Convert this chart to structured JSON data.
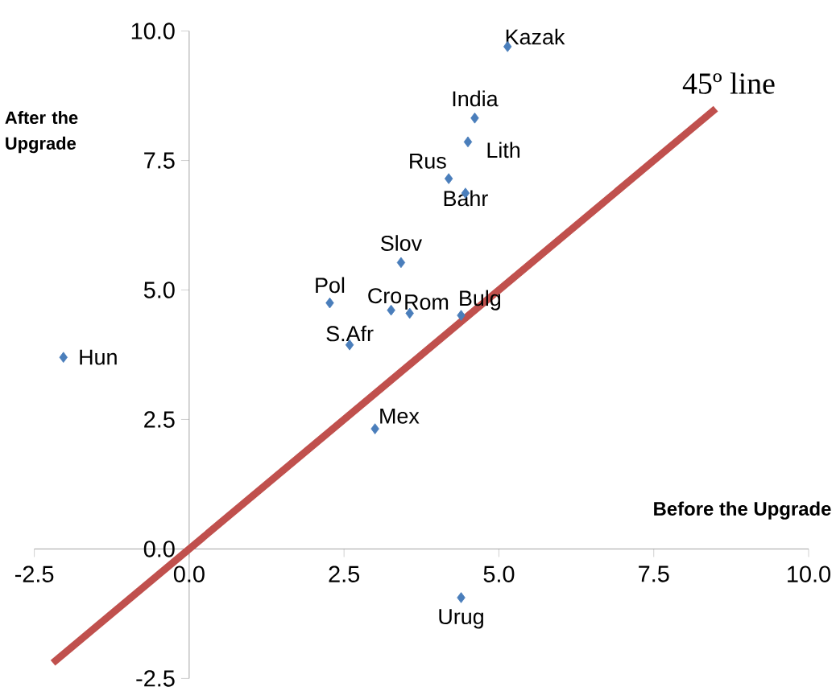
{
  "chart_data": {
    "type": "scatter",
    "xlabel": "Before the Upgrade",
    "ylabel": "After the Upgrade",
    "xlim": [
      -2.5,
      10
    ],
    "ylim": [
      -2.5,
      10
    ],
    "xticks": [
      -2.5,
      {
        "value": 0,
        "label": "0.0"
      },
      2.5,
      {
        "value": 5,
        "label": "5.0"
      },
      7.5,
      {
        "value": 10,
        "label": "10.0"
      }
    ],
    "yticks": [
      -2.5,
      {
        "value": 0,
        "label": "0.0"
      },
      2.5,
      {
        "value": 5,
        "label": "5.0"
      },
      7.5,
      {
        "value": 10,
        "label": "10.0"
      }
    ],
    "grid": false,
    "series": [
      {
        "type": "scatter",
        "color": "#4a7ebb",
        "marker": "diamond",
        "x": [
          5.14,
          4.61,
          4.5,
          4.19,
          4.46,
          3.42,
          2.27,
          3.26,
          3.56,
          4.39,
          2.59,
          -2.03,
          3.0,
          4.39
        ],
        "values": [
          9.7,
          8.32,
          7.86,
          7.15,
          6.87,
          5.53,
          4.75,
          4.61,
          4.55,
          4.51,
          3.94,
          3.7,
          2.32,
          -0.94
        ]
      },
      {
        "type": "line",
        "color": "#c0504d",
        "marker": "none",
        "line_style": "solid",
        "x": [
          -2.2,
          8.5
        ],
        "values": [
          -2.2,
          8.5
        ]
      }
    ],
    "annotations": [
      {
        "text": "Kazak",
        "x": 5.14,
        "y": 9.7
      },
      {
        "text": "India",
        "x": 4.61,
        "y": 8.32
      },
      {
        "text": "Lith",
        "x": 4.5,
        "y": 7.86
      },
      {
        "text": "Rus",
        "x": 4.19,
        "y": 7.15
      },
      {
        "text": "Bahr",
        "x": 4.46,
        "y": 6.87
      },
      {
        "text": "Slov",
        "x": 3.42,
        "y": 5.53
      },
      {
        "text": "Pol",
        "x": 2.27,
        "y": 4.75
      },
      {
        "text": "Cro",
        "x": 3.26,
        "y": 4.61
      },
      {
        "text": "Rom",
        "x": 3.56,
        "y": 4.55
      },
      {
        "text": "Bulg",
        "x": 4.39,
        "y": 4.51
      },
      {
        "text": "S.Afr",
        "x": 2.59,
        "y": 3.94
      },
      {
        "text": "Hun",
        "x": -2.03,
        "y": 3.7
      },
      {
        "text": "Mex",
        "x": 3.0,
        "y": 2.32
      },
      {
        "text": "Urug",
        "x": 4.39,
        "y": -0.94
      },
      {
        "text": "45º line",
        "x": 8.5,
        "y": 8.5
      }
    ]
  }
}
